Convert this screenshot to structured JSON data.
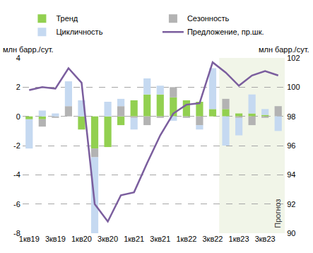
{
  "chart_data": {
    "type": "bar",
    "stacked": true,
    "categories": [
      "1кв19",
      null,
      "3кв19",
      null,
      "1кв20",
      null,
      "3кв20",
      null,
      "1кв21",
      null,
      "3кв21",
      null,
      "1кв22",
      null,
      "3кв22",
      null,
      "1кв23",
      null,
      "3кв23",
      null
    ],
    "y_label": "млн барр./сут.",
    "y2_label": "млн барр./сут.",
    "series": [
      {
        "name": "Тренд",
        "type": "bar",
        "color": "#92d050",
        "values": [
          -0.2,
          -0.2,
          0,
          0,
          -0.9,
          -2.2,
          -2.1,
          -0.6,
          1.1,
          1.5,
          1.5,
          1.3,
          1.1,
          1.0,
          0.5,
          0.5,
          0.2,
          0.2,
          0.1,
          0
        ]
      },
      {
        "name": "Сезонность",
        "type": "bar",
        "color": "#b3b3b3",
        "values": [
          0,
          -0.5,
          -0.1,
          0.7,
          0,
          -0.6,
          0,
          0.7,
          -0.1,
          -0.6,
          -0.1,
          0.7,
          -0.1,
          -0.6,
          0,
          0.7,
          -0.1,
          -0.6,
          -0.1,
          0.7
        ]
      },
      {
        "name": "Цикличность",
        "type": "bar",
        "color": "#c5d9f1",
        "values": [
          -2.0,
          0.4,
          0.2,
          1.7,
          1.1,
          -5.2,
          1.0,
          0.5,
          -0.8,
          1.1,
          0.6,
          -0.3,
          0,
          -0.3,
          2.8,
          -2.0,
          -1.2,
          1.3,
          0.4,
          -1.0
        ]
      },
      {
        "name": "Предложение, пр.шк.",
        "type": "line",
        "axis": "y2",
        "color": "#7b5e9e",
        "values": [
          99.8,
          100.0,
          99.9,
          101.3,
          100.3,
          92.0,
          90.8,
          92.6,
          92.8,
          94.8,
          96.7,
          98.2,
          98.8,
          98.9,
          101.7,
          101.0,
          100.1,
          100.8,
          101.1,
          100.8
        ]
      }
    ],
    "ylim": [
      -8,
      4
    ],
    "yticks": [
      -8,
      -6,
      -4,
      -2,
      0,
      2,
      4
    ],
    "y2lim": [
      90,
      102
    ],
    "y2ticks": [
      90,
      92,
      94,
      96,
      98,
      100,
      102
    ],
    "grid": true,
    "legend": "top",
    "annotations": [
      {
        "text": "Прогноз",
        "forecast_start": 15
      }
    ]
  }
}
